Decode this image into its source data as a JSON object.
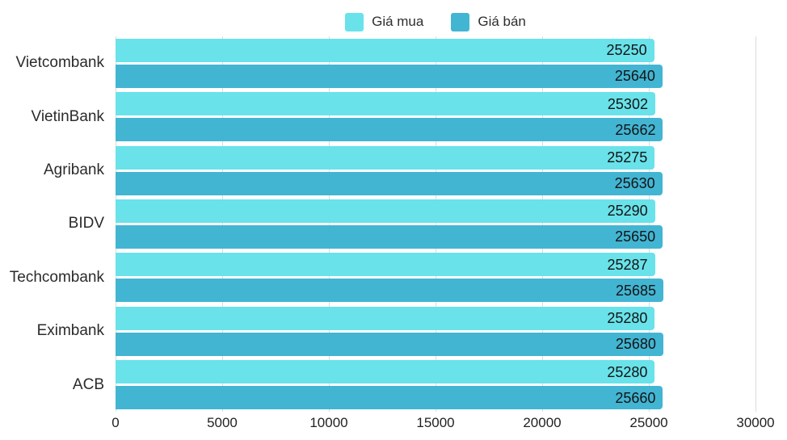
{
  "legend": {
    "items": [
      {
        "label": "Giá mua",
        "color": "#69e2ea"
      },
      {
        "label": "Giá bán",
        "color": "#42b5d3"
      }
    ]
  },
  "chart_data": {
    "type": "bar",
    "orientation": "horizontal",
    "title": "",
    "xlabel": "",
    "ylabel": "",
    "categories": [
      "Vietcombank",
      "VietinBank",
      "Agribank",
      "BIDV",
      "Techcombank",
      "Eximbank",
      "ACB"
    ],
    "series": [
      {
        "name": "Giá mua",
        "color": "#69e2ea",
        "values": [
          25250,
          25302,
          25275,
          25290,
          25287,
          25280,
          25280
        ]
      },
      {
        "name": "Giá bán",
        "color": "#42b5d3",
        "values": [
          25640,
          25662,
          25630,
          25650,
          25685,
          25680,
          25660
        ]
      }
    ],
    "xlim": [
      0,
      30000
    ],
    "x_ticks": [
      0,
      5000,
      10000,
      15000,
      20000,
      25000,
      30000
    ],
    "grid": true,
    "legend_position": "top",
    "value_labels": "inside-end"
  },
  "style": {
    "gridline_color": "#dcdcdc",
    "label_color": "#2b2b2b",
    "value_color": "#141414"
  }
}
